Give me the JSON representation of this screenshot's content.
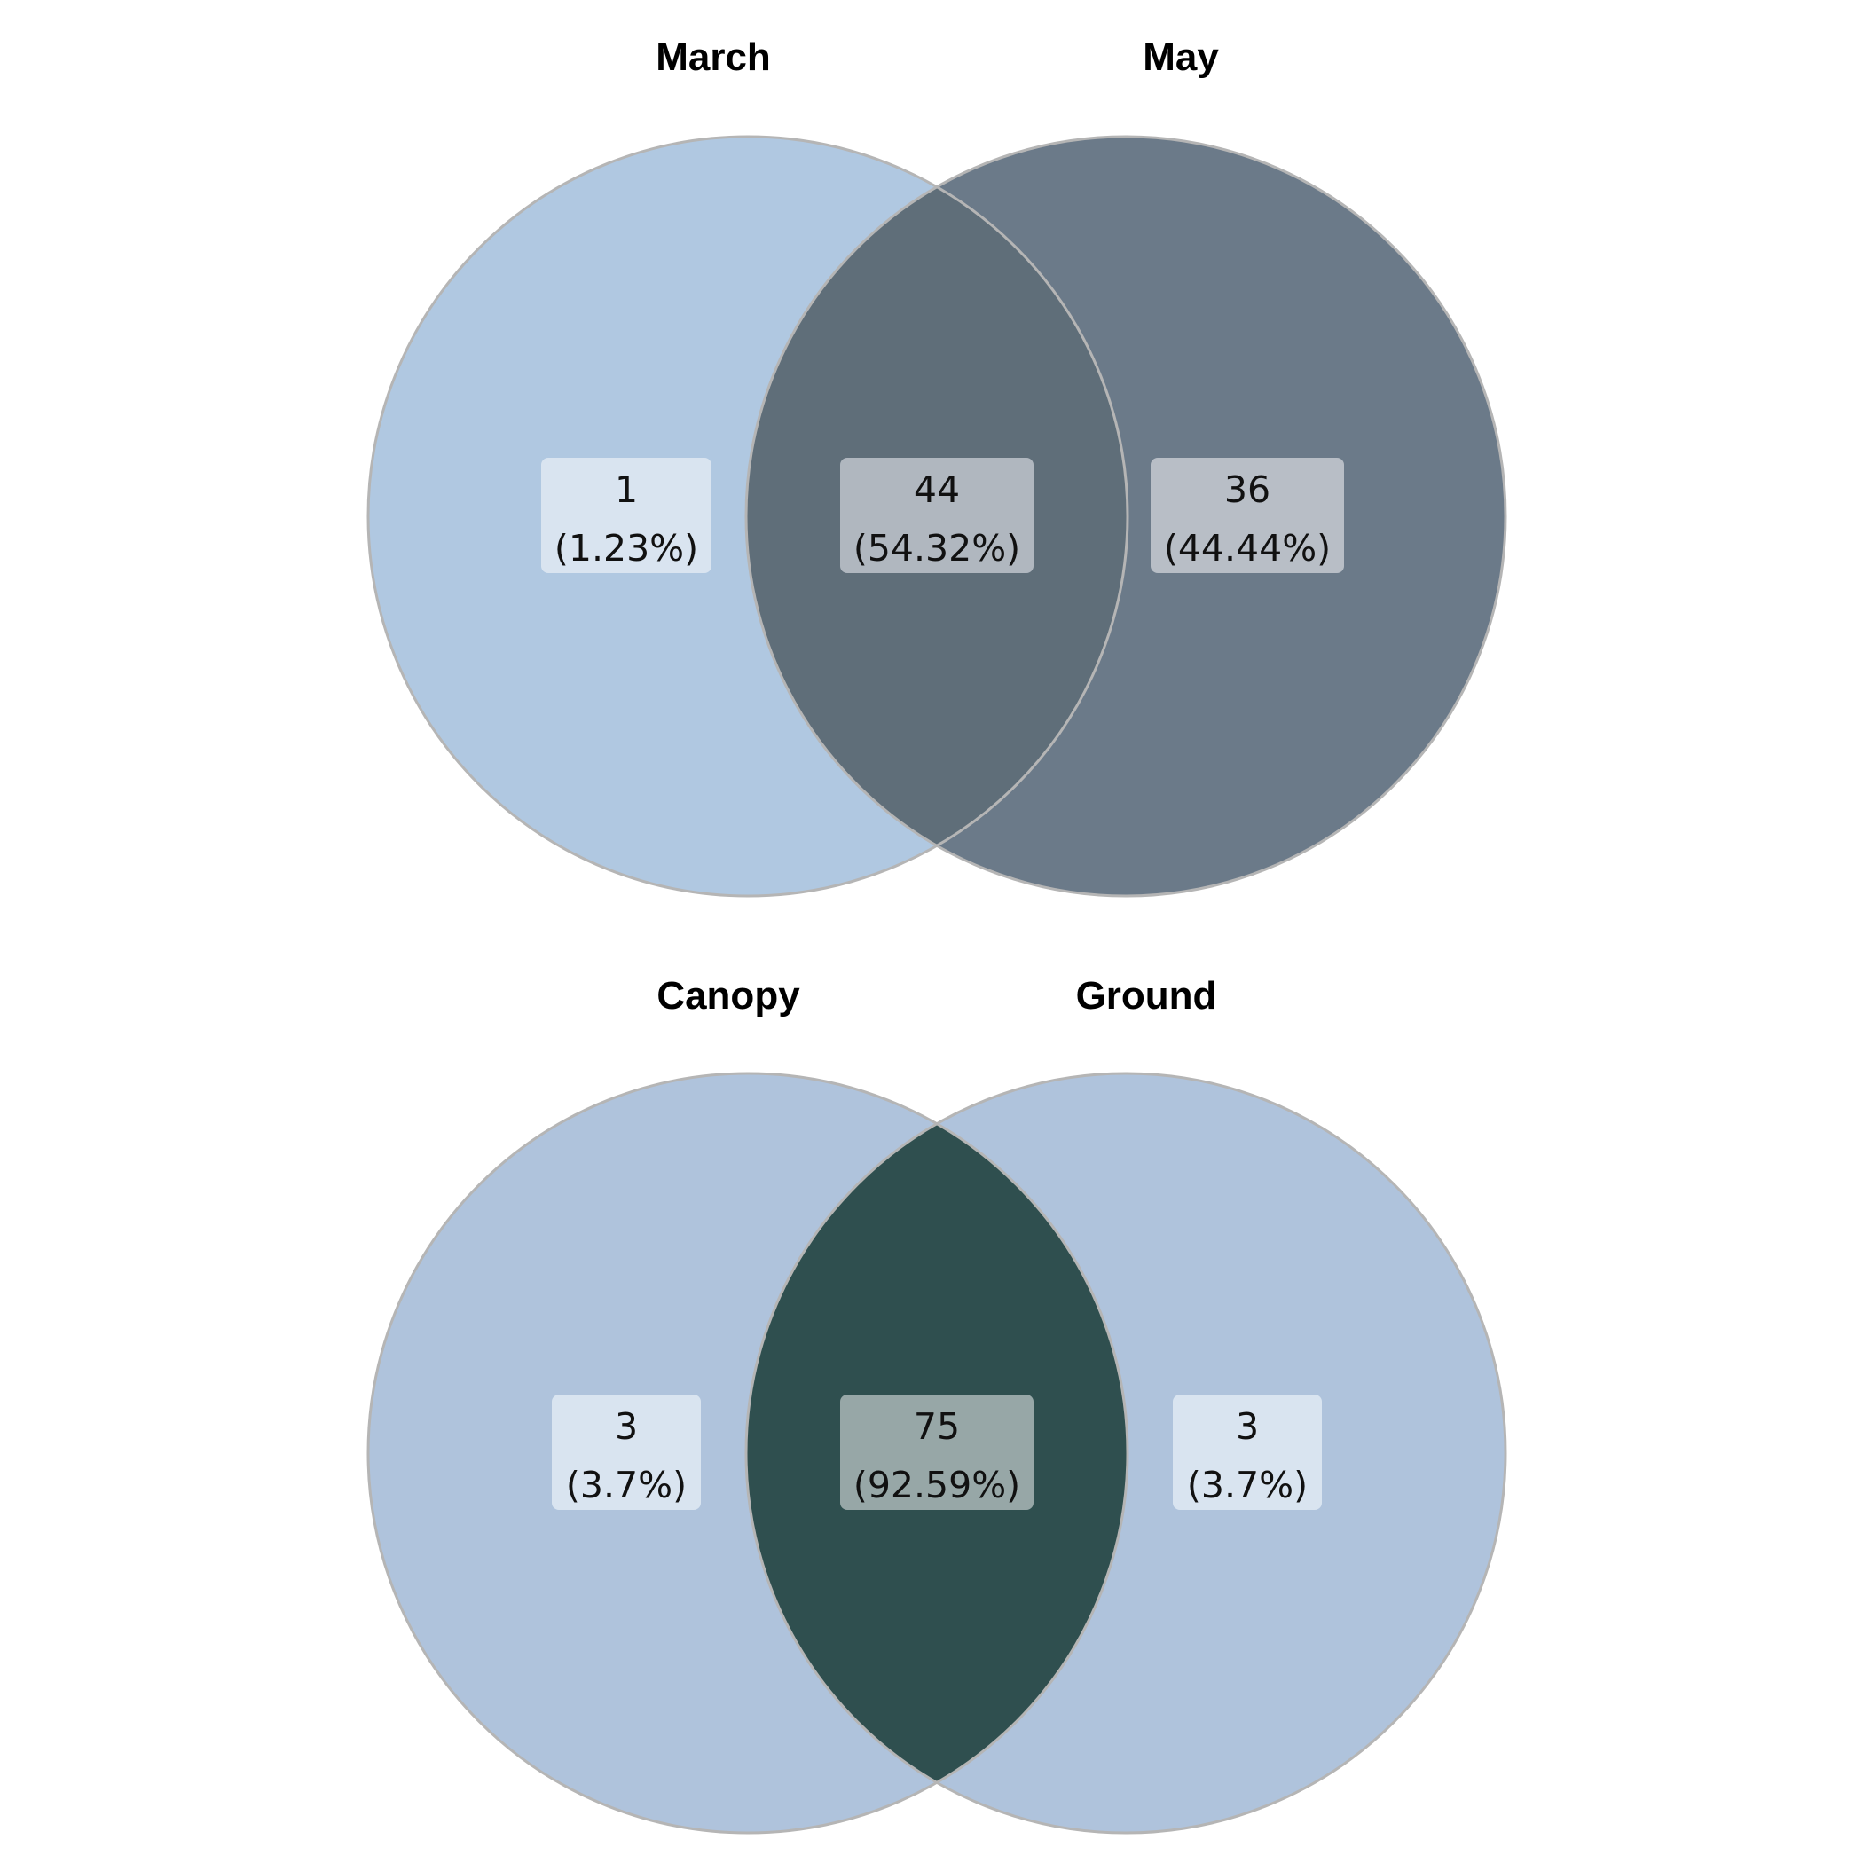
{
  "diagrams": [
    {
      "sets": [
        "March",
        "May"
      ],
      "colors": {
        "left_only": "#b0c8e1",
        "right_only": "#6b7a89",
        "intersection": "#5f6e79",
        "outline": "#b5b5b5"
      },
      "regions": [
        {
          "id": "left_only",
          "count": "1",
          "percent": "(1.23%)",
          "box_color": "#d9e4f0"
        },
        {
          "id": "intersection",
          "count": "44",
          "percent": "(54.32%)",
          "box_color": "#b0b7bf"
        },
        {
          "id": "right_only",
          "count": "36",
          "percent": "(44.44%)",
          "box_color": "#b8bec6"
        }
      ]
    },
    {
      "sets": [
        "Canopy",
        "Ground"
      ],
      "colors": {
        "left_only": "#afc3dc",
        "right_only": "#afc3dc",
        "intersection": "#2f4f4f",
        "outline": "#b5b5b5"
      },
      "regions": [
        {
          "id": "left_only",
          "count": "3",
          "percent": "(3.7%)",
          "box_color": "#d9e4f0"
        },
        {
          "id": "intersection",
          "count": "75",
          "percent": "(92.59%)",
          "box_color": "#97a7a7"
        },
        {
          "id": "right_only",
          "count": "3",
          "percent": "(3.7%)",
          "box_color": "#d9e4f0"
        }
      ]
    }
  ]
}
